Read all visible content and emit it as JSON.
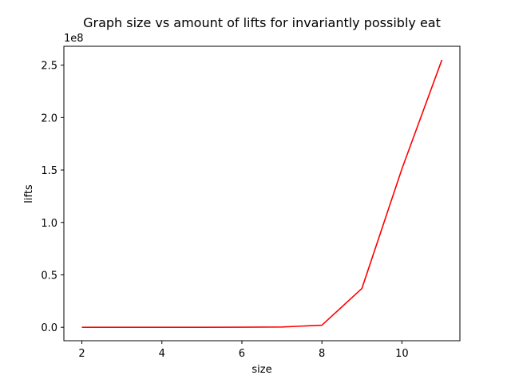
{
  "chart_data": {
    "type": "line",
    "title": "Graph size vs amount of lifts for invariantly possibly eat",
    "xlabel": "size",
    "ylabel": "lifts",
    "y_offset_label": "1e8",
    "xlim": [
      1.55,
      11.45
    ],
    "ylim": [
      -0.128,
      2.68
    ],
    "x_ticks": [
      2,
      4,
      6,
      8,
      10
    ],
    "x_tick_labels": [
      "2",
      "4",
      "6",
      "8",
      "10"
    ],
    "y_ticks": [
      0.0,
      0.5,
      1.0,
      1.5,
      2.0,
      2.5
    ],
    "y_tick_labels": [
      "0.0",
      "0.5",
      "1.0",
      "1.5",
      "2.0",
      "2.5"
    ],
    "y_scale_factor": 100000000,
    "grid": false,
    "series": [
      {
        "color": "#ff0000",
        "x": [
          2,
          3,
          4,
          5,
          6,
          7,
          8,
          9,
          10,
          11
        ],
        "y": [
          0.0,
          0.0,
          0.0,
          0.0,
          0.0005,
          0.003,
          0.02,
          0.37,
          1.51,
          2.55
        ]
      }
    ]
  }
}
